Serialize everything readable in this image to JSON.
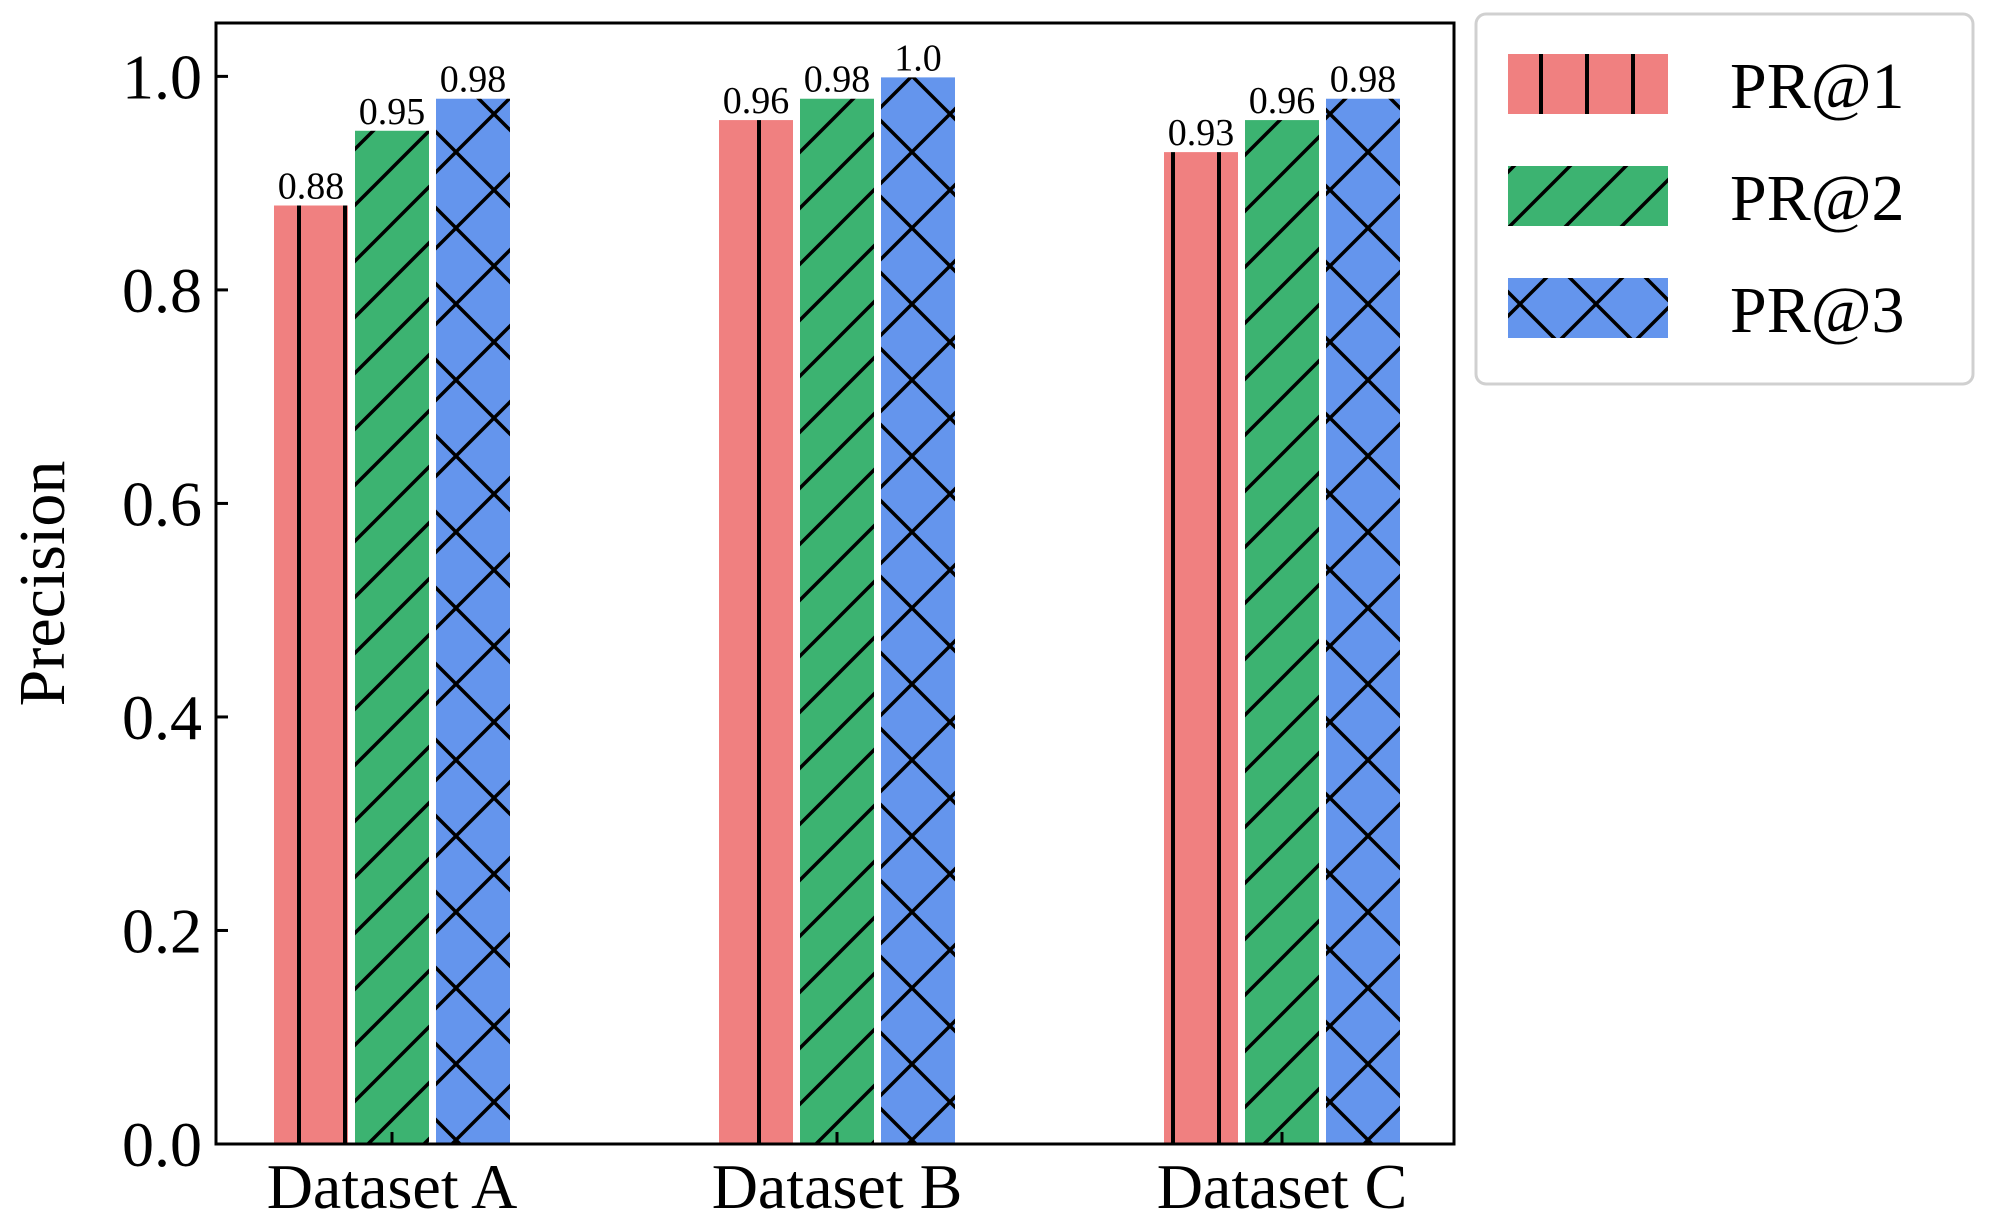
{
  "chart_data": {
    "type": "bar",
    "title": "",
    "xlabel": "",
    "ylabel": "Precision",
    "ylim": [
      0,
      1.05
    ],
    "yticks": [
      0.0,
      0.2,
      0.4,
      0.6,
      0.8,
      1.0
    ],
    "ytick_labels": [
      "0.0",
      "0.2",
      "0.4",
      "0.6",
      "0.8",
      "1.0"
    ],
    "categories": [
      "Dataset A",
      "Dataset B",
      "Dataset C"
    ],
    "series": [
      {
        "name": "PR@1",
        "color": "#f08080",
        "hatch": "vertical",
        "values": [
          0.88,
          0.96,
          0.93
        ],
        "labels": [
          "0.88",
          "0.96",
          "0.93"
        ]
      },
      {
        "name": "PR@2",
        "color": "#3cb371",
        "hatch": "diagonal",
        "values": [
          0.95,
          0.98,
          0.96
        ],
        "labels": [
          "0.95",
          "0.98",
          "0.96"
        ]
      },
      {
        "name": "PR@3",
        "color": "#6495ed",
        "hatch": "cross",
        "values": [
          0.98,
          1.0,
          0.98
        ],
        "labels": [
          "0.98",
          "1.0",
          "0.98"
        ]
      }
    ],
    "legend_position": "outside-top-right",
    "grid": false
  }
}
